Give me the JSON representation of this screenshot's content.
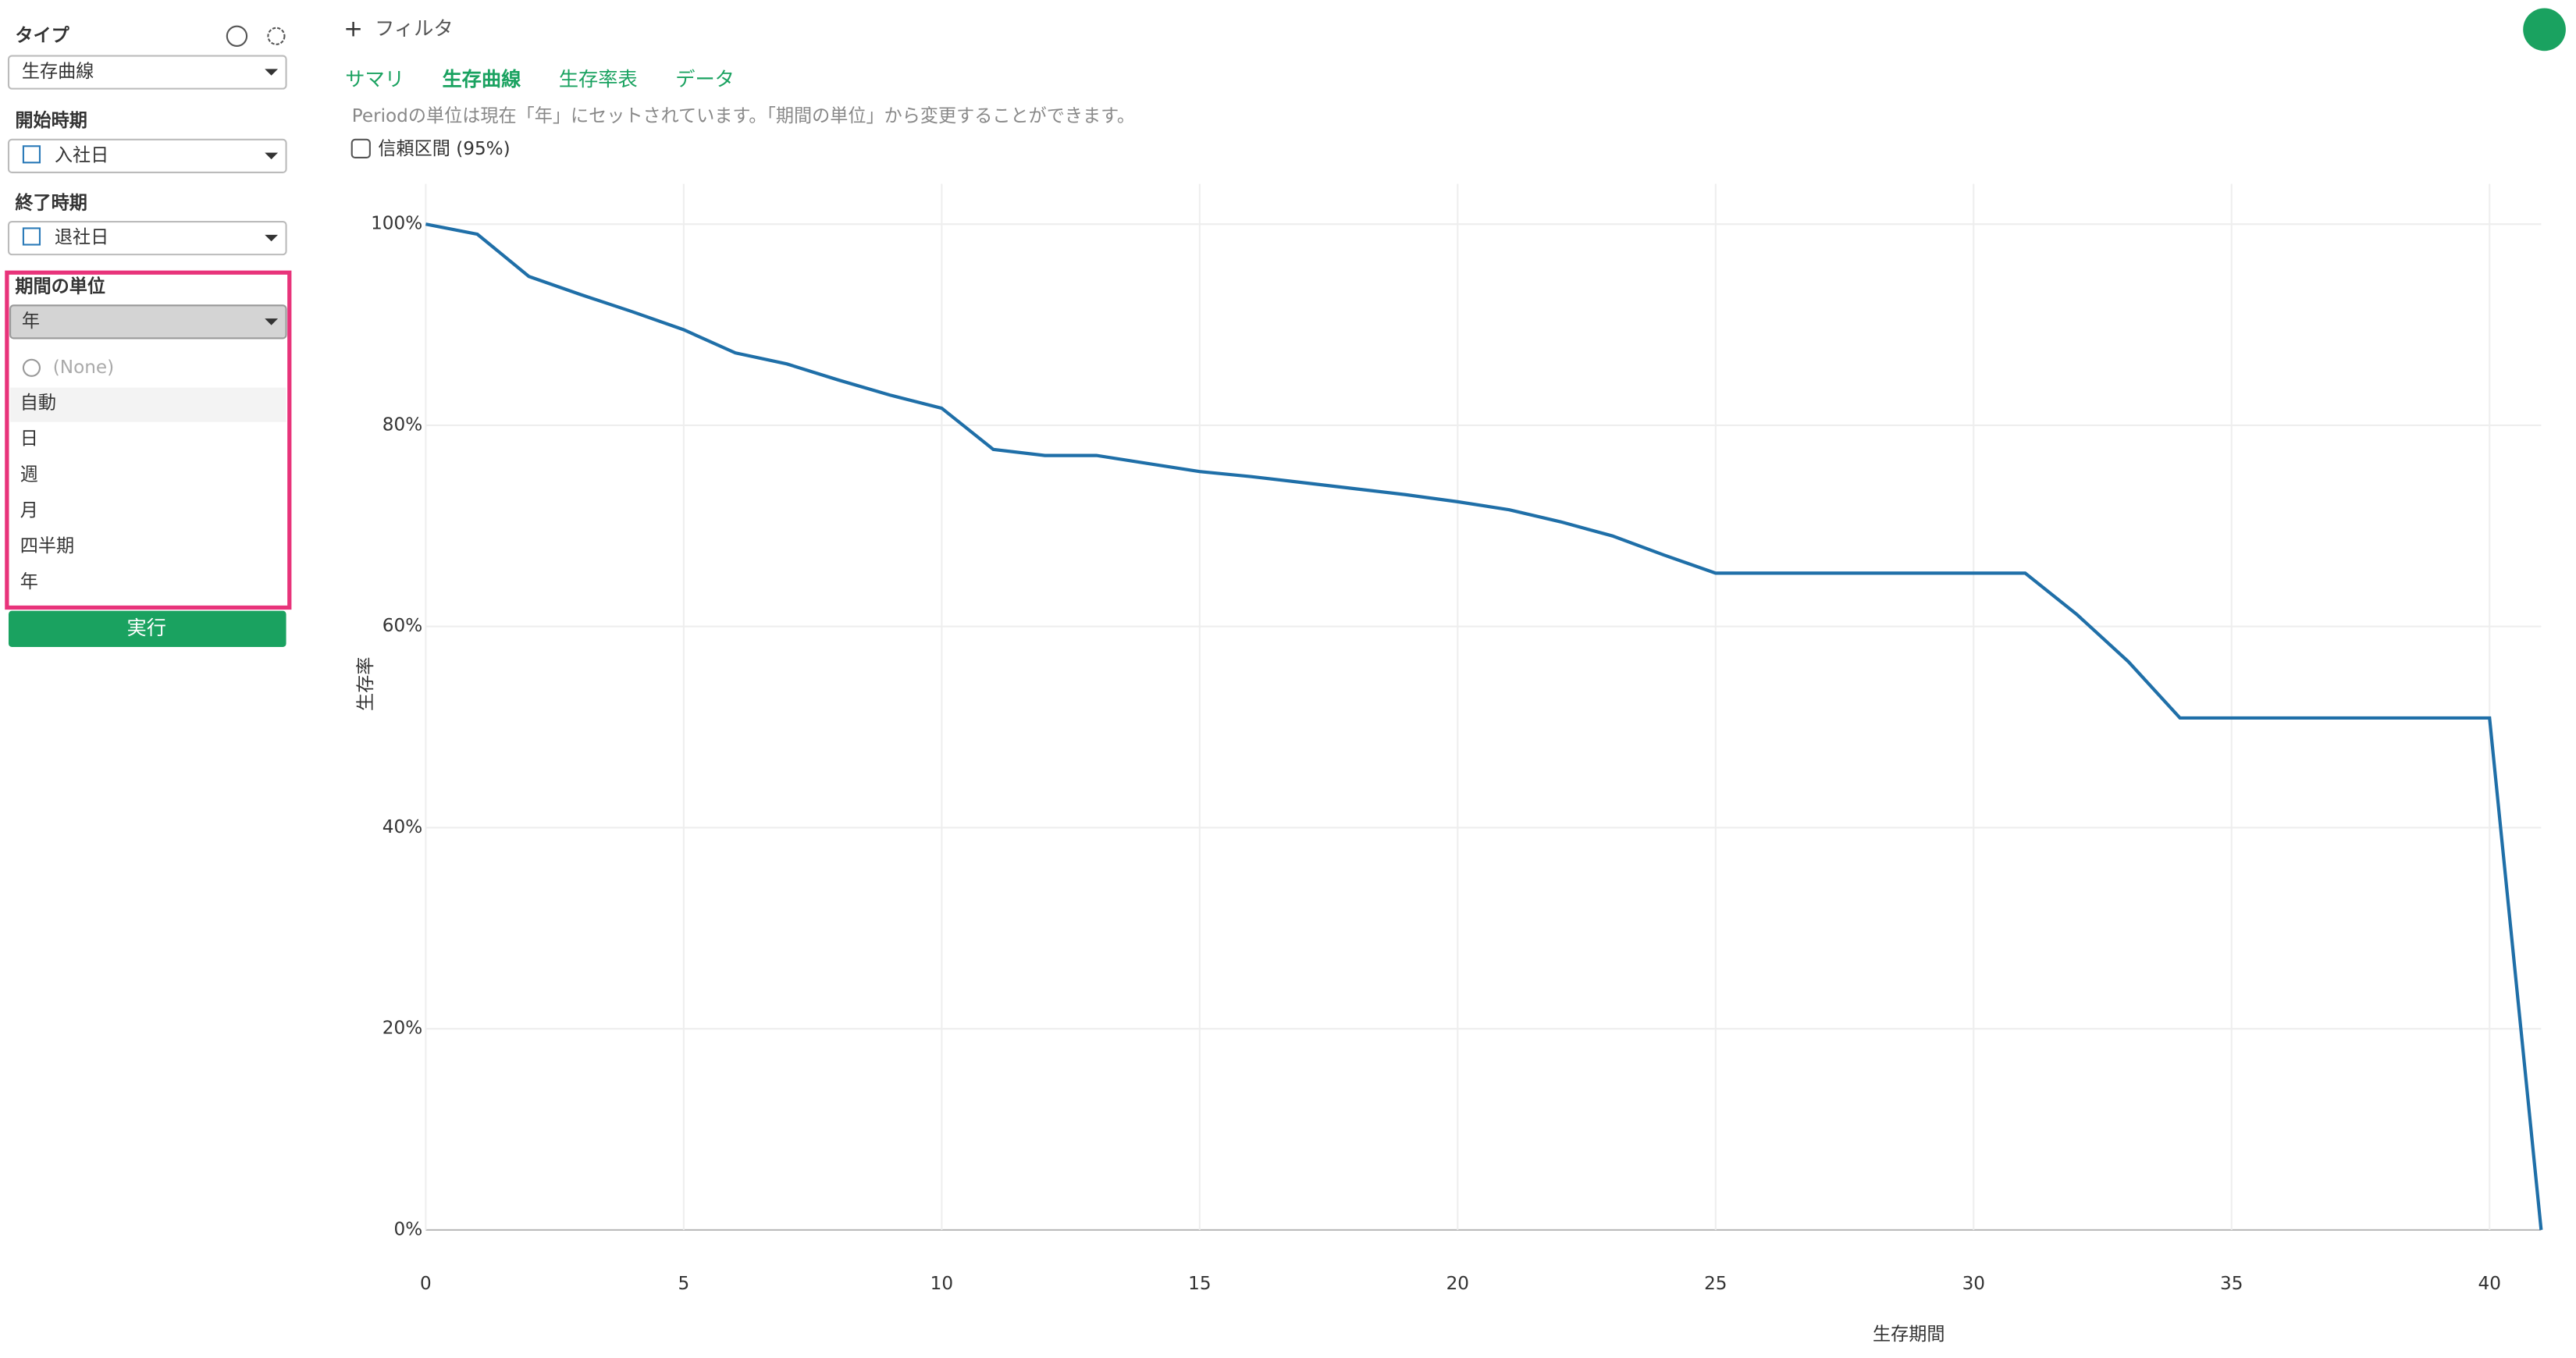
{
  "sidebar": {
    "type_label": "タイプ",
    "type_value": "生存曲線",
    "start_label": "開始時期",
    "start_value": "入社日",
    "end_label": "終了時期",
    "end_value": "退社日",
    "unit_label": "期間の単位",
    "unit_value": "年",
    "options": [
      "(None)",
      "自動",
      "日",
      "週",
      "月",
      "四半期",
      "年"
    ],
    "run_button": "実行"
  },
  "toolbar": {
    "filter": "フィルタ"
  },
  "tabs": [
    "サマリ",
    "生存曲線",
    "生存率表",
    "データ"
  ],
  "note": "Periodの単位は現在「年」にセットされています。「期間の単位」から変更することができます。",
  "checkbox": "信頼区間 (95%)",
  "chart_data": {
    "type": "line",
    "xlabel": "生存期間",
    "ylabel": "生存率",
    "x": [
      0,
      1,
      2,
      3,
      4,
      5,
      6,
      7,
      8,
      9,
      10,
      11,
      12,
      13,
      14,
      15,
      16,
      17,
      18,
      19,
      20,
      21,
      22,
      23,
      24,
      25,
      26,
      27,
      28,
      29,
      30,
      31,
      32,
      33,
      34,
      35,
      36,
      37,
      38,
      39,
      40,
      41
    ],
    "series": [
      {
        "name": "生存率",
        "color": "#1f6fa8",
        "values": [
          100,
          99,
          94.8,
          93,
          91.3,
          89.5,
          87.2,
          86.1,
          84.5,
          83,
          81.7,
          77.6,
          77,
          77,
          76.2,
          75.4,
          74.9,
          74.3,
          73.7,
          73.1,
          72.4,
          71.6,
          70.4,
          69,
          67.1,
          65.3,
          65.3,
          65.3,
          65.3,
          65.3,
          65.3,
          65.3,
          61.2,
          56.5,
          50.9,
          50.9,
          50.9,
          50.9,
          50.9,
          50.9,
          50.9,
          0
        ]
      }
    ],
    "xlim": [
      0,
      41
    ],
    "ylim": [
      0,
      104
    ],
    "xticks": [
      0,
      5,
      10,
      15,
      20,
      25,
      30,
      35,
      40
    ],
    "yticks": [
      {
        "value": 0,
        "label": "0%"
      },
      {
        "value": 20,
        "label": "20%"
      },
      {
        "value": 40,
        "label": "40%"
      },
      {
        "value": 60,
        "label": "60%"
      },
      {
        "value": 80,
        "label": "80%"
      },
      {
        "value": 100,
        "label": "100%"
      }
    ],
    "grid": true
  }
}
